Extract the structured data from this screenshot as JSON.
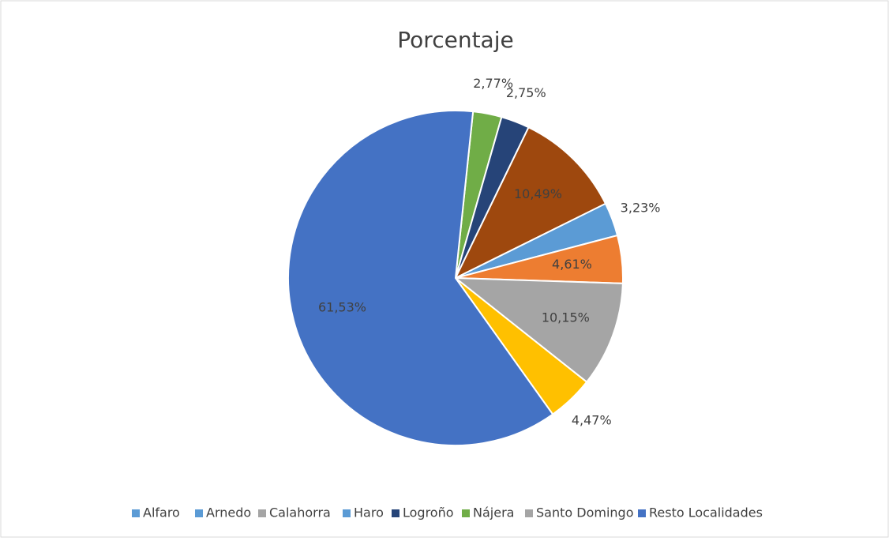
{
  "chart_data": {
    "type": "pie",
    "title": "Porcentaje",
    "values": [
      2.77,
      2.75,
      10.49,
      3.23,
      4.61,
      10.15,
      4.47,
      61.53
    ],
    "value_labels": [
      "2,77%",
      "2,75%",
      "10,49%",
      "3,23%",
      "4,61%",
      "10,15%",
      "4,47%",
      "61,53%"
    ],
    "colors": [
      "#70AD47",
      "#264478",
      "#9E480E",
      "#5B9BD5",
      "#ED7D31",
      "#A5A5A5",
      "#FFC000",
      "#4472C4"
    ],
    "legend": [
      {
        "name": "Alfaro",
        "color": "#5B9BD5"
      },
      {
        "name": "Arnedo",
        "color": "#5B9BD5"
      },
      {
        "name": "Calahorra",
        "color": "#A5A5A5"
      },
      {
        "name": "Haro",
        "color": "#5B9BD5"
      },
      {
        "name": "Logroño",
        "color": "#264478"
      },
      {
        "name": "Nájera",
        "color": "#70AD47"
      },
      {
        "name": "Santo Domingo",
        "color": "#A5A5A5"
      },
      {
        "name": "Resto Localidades",
        "color": "#4472C4"
      }
    ],
    "legend_position": "bottom"
  }
}
